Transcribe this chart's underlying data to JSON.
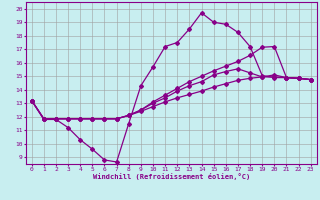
{
  "xlabel": "Windchill (Refroidissement éolien,°C)",
  "xlim": [
    -0.5,
    23.5
  ],
  "ylim": [
    8.5,
    20.5
  ],
  "xticks": [
    0,
    1,
    2,
    3,
    4,
    5,
    6,
    7,
    8,
    9,
    10,
    11,
    12,
    13,
    14,
    15,
    16,
    17,
    18,
    19,
    20,
    21,
    22,
    23
  ],
  "yticks": [
    9,
    10,
    11,
    12,
    13,
    14,
    15,
    16,
    17,
    18,
    19,
    20
  ],
  "background_color": "#c8eef0",
  "grid_color": "#a0a0a0",
  "line_color": "#880088",
  "line_width": 0.9,
  "marker": "D",
  "marker_size": 2.0,
  "lines": [
    {
      "x": [
        0,
        1,
        2,
        3,
        4,
        5,
        6,
        7,
        8,
        9,
        10,
        11,
        12,
        13,
        14,
        15,
        16,
        17,
        18,
        19,
        20,
        21,
        22,
        23
      ],
      "y": [
        13.2,
        11.8,
        11.8,
        11.2,
        10.3,
        9.6,
        8.8,
        8.65,
        11.5,
        14.3,
        15.7,
        17.2,
        17.5,
        18.5,
        19.7,
        19.0,
        18.85,
        18.25,
        17.2,
        15.05,
        14.9,
        14.9,
        14.85,
        14.75
      ]
    },
    {
      "x": [
        0,
        1,
        2,
        3,
        4,
        5,
        6,
        7,
        8,
        9,
        10,
        11,
        12,
        13,
        14,
        15,
        16,
        17,
        18,
        19,
        20,
        21,
        22,
        23
      ],
      "y": [
        13.2,
        11.85,
        11.85,
        11.85,
        11.85,
        11.85,
        11.85,
        11.85,
        12.1,
        12.4,
        12.75,
        13.1,
        13.4,
        13.65,
        13.9,
        14.2,
        14.45,
        14.7,
        14.85,
        14.95,
        15.1,
        14.9,
        14.85,
        14.75
      ]
    },
    {
      "x": [
        0,
        1,
        2,
        3,
        4,
        5,
        6,
        7,
        8,
        9,
        10,
        11,
        12,
        13,
        14,
        15,
        16,
        17,
        18,
        19,
        20,
        21,
        22,
        23
      ],
      "y": [
        13.2,
        11.85,
        11.85,
        11.85,
        11.85,
        11.85,
        11.85,
        11.85,
        12.1,
        12.5,
        13.0,
        13.4,
        13.9,
        14.3,
        14.6,
        15.1,
        15.35,
        15.55,
        15.25,
        14.95,
        14.95,
        14.9,
        14.85,
        14.75
      ]
    },
    {
      "x": [
        0,
        1,
        2,
        3,
        4,
        5,
        6,
        7,
        8,
        9,
        10,
        11,
        12,
        13,
        14,
        15,
        16,
        17,
        18,
        19,
        20,
        21,
        22,
        23
      ],
      "y": [
        13.2,
        11.85,
        11.85,
        11.85,
        11.85,
        11.85,
        11.85,
        11.85,
        12.1,
        12.5,
        13.1,
        13.6,
        14.1,
        14.6,
        15.0,
        15.4,
        15.75,
        16.1,
        16.55,
        17.15,
        17.2,
        14.9,
        14.85,
        14.75
      ]
    }
  ]
}
